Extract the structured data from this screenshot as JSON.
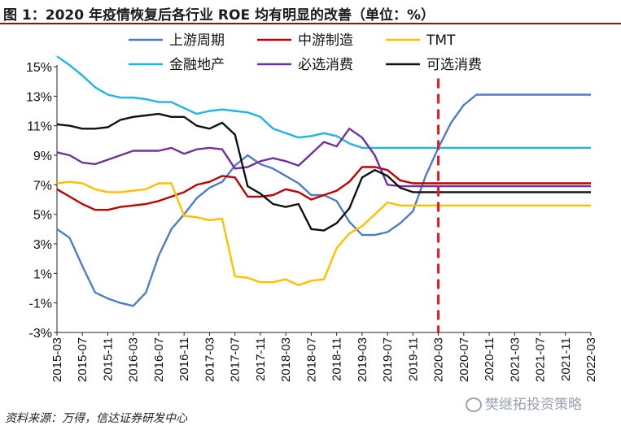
{
  "header": {
    "title": "图 1：2020 年疫情恢复后各行业 ROE 均有明显的改善（单位：%）"
  },
  "footer": {
    "source": "资料来源：万得，信达证券研发中心",
    "watermark": "樊继拓投资策略"
  },
  "chart_data": {
    "type": "line",
    "title": "",
    "xlabel": "",
    "ylabel": "",
    "ylim": [
      -3,
      15
    ],
    "y_ticks": [
      -3,
      -1,
      1,
      3,
      5,
      7,
      9,
      11,
      13,
      15
    ],
    "y_tick_labels": [
      "-3%",
      "-1%",
      "1%",
      "3%",
      "5%",
      "7%",
      "9%",
      "11%",
      "13%",
      "15%"
    ],
    "x": [
      "2015-03",
      "2015-05",
      "2015-07",
      "2015-09",
      "2015-11",
      "2016-01",
      "2016-03",
      "2016-05",
      "2016-07",
      "2016-09",
      "2016-11",
      "2017-01",
      "2017-03",
      "2017-05",
      "2017-07",
      "2017-09",
      "2017-11",
      "2018-01",
      "2018-03",
      "2018-05",
      "2018-07",
      "2018-09",
      "2018-11",
      "2019-01",
      "2019-03",
      "2019-05",
      "2019-07",
      "2019-09",
      "2019-11",
      "2020-01",
      "2020-03",
      "2020-05",
      "2020-07",
      "2020-09",
      "2020-11",
      "2021-01",
      "2021-03",
      "2021-05",
      "2021-07",
      "2021-09",
      "2021-11",
      "2022-01",
      "2022-03"
    ],
    "x_tick_labels": [
      "2015-03",
      "2015-07",
      "2015-11",
      "2016-03",
      "2016-07",
      "2016-11",
      "2017-03",
      "2017-07",
      "2017-11",
      "2018-03",
      "2018-07",
      "2018-11",
      "2019-03",
      "2019-07",
      "2019-11",
      "2020-03",
      "2020-07",
      "2020-11",
      "2021-03",
      "2021-07",
      "2021-11",
      "2022-03"
    ],
    "vline": {
      "x": "2020-03",
      "color": "#e8191b",
      "style": "dashed"
    },
    "legend_position": "top",
    "grid": false,
    "series": [
      {
        "name": "上游周期",
        "color": "#4f7cc9",
        "values": [
          4.0,
          3.4,
          1.5,
          -0.3,
          -0.7,
          -1.0,
          -1.2,
          -0.3,
          2.2,
          4.0,
          5.0,
          6.1,
          6.8,
          7.2,
          8.3,
          9.0,
          8.4,
          8.1,
          7.6,
          7.1,
          6.3,
          6.3,
          5.9,
          4.5,
          3.6,
          3.6,
          3.8,
          4.4,
          5.2,
          7.6,
          9.5,
          11.2,
          12.4,
          13.1,
          13.1,
          13.1,
          13.1,
          13.1,
          13.1,
          13.1,
          13.1,
          13.1,
          13.1
        ]
      },
      {
        "name": "中游制造",
        "color": "#c00000",
        "values": [
          6.7,
          6.2,
          5.7,
          5.3,
          5.3,
          5.5,
          5.6,
          5.7,
          5.9,
          6.2,
          6.5,
          7.0,
          7.2,
          7.6,
          7.5,
          6.2,
          6.2,
          6.3,
          6.7,
          6.5,
          6.0,
          6.3,
          6.6,
          7.2,
          8.2,
          8.2,
          8.0,
          7.3,
          7.1,
          7.1,
          7.1,
          7.1,
          7.1,
          7.1,
          7.1,
          7.1,
          7.1,
          7.1,
          7.1,
          7.1,
          7.1,
          7.1,
          7.1
        ]
      },
      {
        "name": "TMT",
        "color": "#ffc000",
        "values": [
          7.1,
          7.2,
          7.1,
          6.7,
          6.5,
          6.5,
          6.6,
          6.7,
          7.1,
          7.1,
          4.9,
          4.8,
          4.6,
          4.7,
          0.8,
          0.7,
          0.4,
          0.4,
          0.6,
          0.2,
          0.5,
          0.6,
          2.7,
          3.7,
          4.2,
          5.0,
          5.8,
          5.6,
          5.6,
          5.6,
          5.6,
          5.6,
          5.6,
          5.6,
          5.6,
          5.6,
          5.6,
          5.6,
          5.6,
          5.6,
          5.6,
          5.6,
          5.6
        ]
      },
      {
        "name": "金融地产",
        "color": "#1fb3e6",
        "values": [
          15.7,
          15.1,
          14.4,
          13.6,
          13.1,
          12.9,
          12.9,
          12.8,
          12.6,
          12.6,
          12.2,
          11.8,
          12.0,
          12.1,
          12.0,
          11.9,
          11.6,
          10.8,
          10.5,
          10.2,
          10.3,
          10.5,
          10.3,
          9.8,
          9.5,
          9.5,
          9.5,
          9.5,
          9.5,
          9.5,
          9.5,
          9.5,
          9.5,
          9.5,
          9.5,
          9.5,
          9.5,
          9.5,
          9.5,
          9.5,
          9.5,
          9.5,
          9.5
        ]
      },
      {
        "name": "必选消费",
        "color": "#7030a0",
        "values": [
          9.2,
          9.0,
          8.5,
          8.4,
          8.7,
          9.0,
          9.3,
          9.3,
          9.3,
          9.5,
          9.1,
          9.4,
          9.5,
          9.4,
          8.1,
          8.2,
          8.6,
          8.8,
          8.6,
          8.3,
          9.1,
          9.9,
          9.6,
          10.8,
          10.2,
          9.0,
          7.0,
          6.9,
          6.9,
          6.9,
          6.9,
          6.9,
          6.9,
          6.9,
          6.9,
          6.9,
          6.9,
          6.9,
          6.9,
          6.9,
          6.9,
          6.9,
          6.9
        ]
      },
      {
        "name": "可选消费",
        "color": "#111111",
        "values": [
          11.1,
          11.0,
          10.8,
          10.8,
          10.9,
          11.4,
          11.6,
          11.7,
          11.8,
          11.6,
          11.6,
          11.0,
          10.8,
          11.2,
          10.4,
          6.9,
          6.4,
          5.7,
          5.5,
          5.7,
          4.0,
          3.9,
          4.4,
          5.4,
          7.5,
          8.0,
          7.6,
          6.8,
          6.5,
          6.5,
          6.5,
          6.5,
          6.5,
          6.5,
          6.5,
          6.5,
          6.5,
          6.5,
          6.5,
          6.5,
          6.5,
          6.5,
          6.5
        ]
      }
    ]
  }
}
